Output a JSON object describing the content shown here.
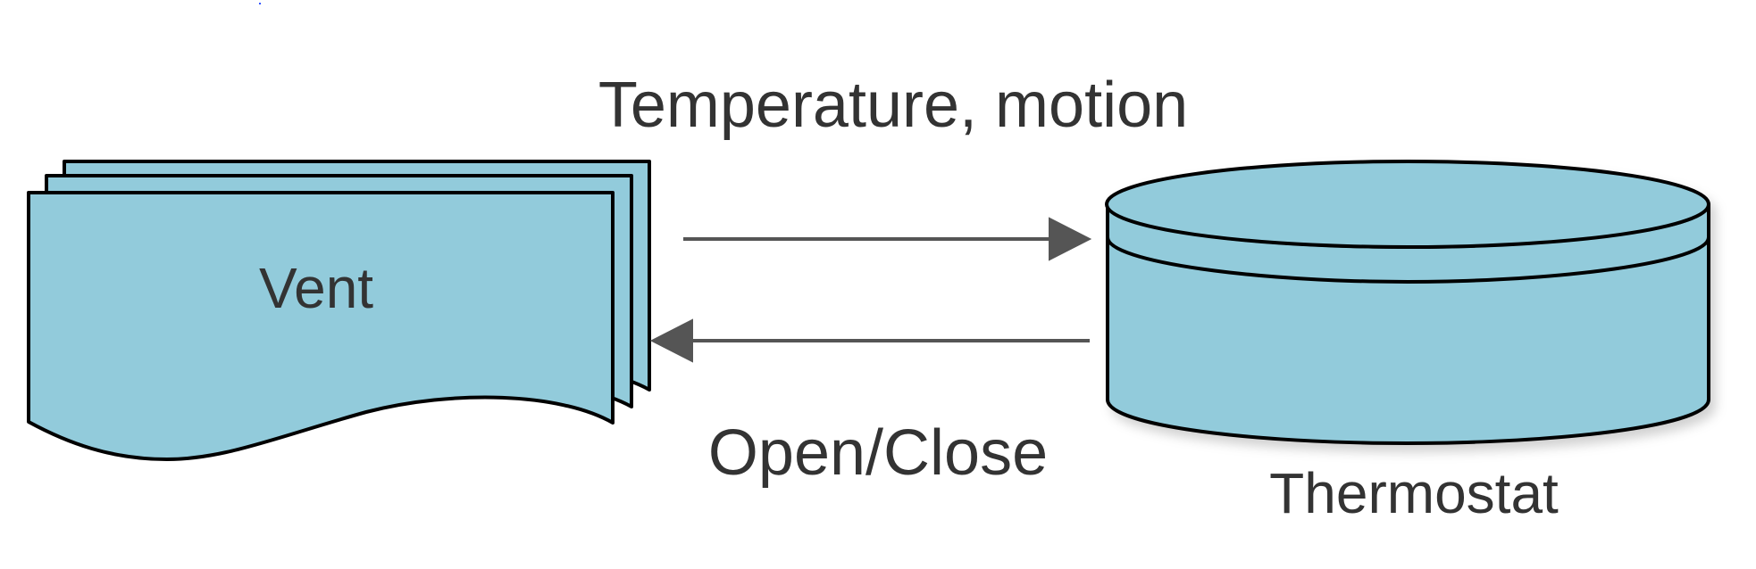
{
  "diagram": {
    "nodes": {
      "vent": {
        "label": "Vent",
        "shape": "multi-document",
        "fill": "#92CBDB"
      },
      "thermostat": {
        "label": "Thermostat",
        "shape": "cylinder",
        "fill": "#92CBDB"
      }
    },
    "edges": {
      "to_thermostat": {
        "label": "Temperature, motion",
        "from": "Vent",
        "to": "Thermostat"
      },
      "to_vent": {
        "label": "Open/Close",
        "from": "Thermostat",
        "to": "Vent"
      }
    },
    "colors": {
      "stroke": "#000000",
      "arrow": "#555555",
      "text": "#333333"
    }
  }
}
